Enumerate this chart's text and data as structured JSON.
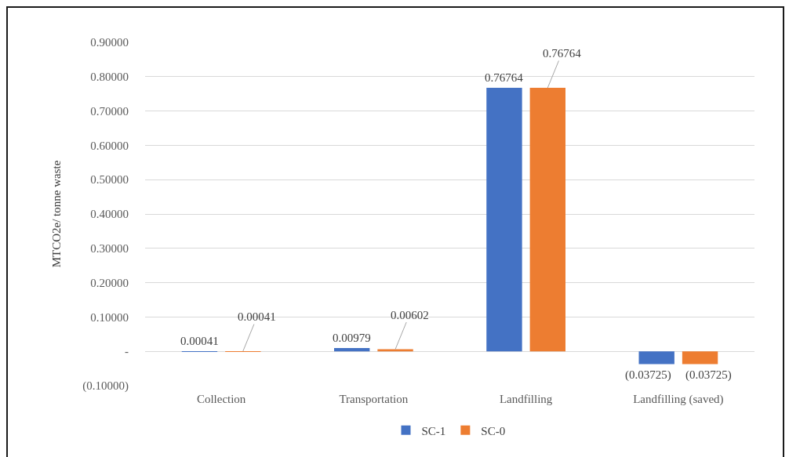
{
  "chart_data": {
    "type": "bar",
    "ylabel": "MTCO2e/ tonne waste",
    "categories": [
      "Collection",
      "Transportation",
      "Landfilling",
      "Landfilling (saved)"
    ],
    "series": [
      {
        "name": "SC-1",
        "color": "#4472c4",
        "values": [
          0.00041,
          0.00979,
          0.76764,
          -0.03725
        ],
        "value_labels": [
          "0.00041",
          "0.00979",
          "0.76764",
          "(0.03725)"
        ]
      },
      {
        "name": "SC-0",
        "color": "#ed7d31",
        "values": [
          0.00041,
          0.00602,
          0.76764,
          -0.03725
        ],
        "value_labels": [
          "0.00041",
          "0.00602",
          "0.76764",
          "(0.03725)"
        ]
      }
    ],
    "ylim": [
      -0.1,
      0.9
    ],
    "yticks": [
      {
        "value": -0.1,
        "label": "(0.10000)"
      },
      {
        "value": 0,
        "label": "-"
      },
      {
        "value": 0.1,
        "label": "0.10000"
      },
      {
        "value": 0.2,
        "label": "0.20000"
      },
      {
        "value": 0.3,
        "label": "0.30000"
      },
      {
        "value": 0.4,
        "label": "0.40000"
      },
      {
        "value": 0.5,
        "label": "0.50000"
      },
      {
        "value": 0.6,
        "label": "0.60000"
      },
      {
        "value": 0.7,
        "label": "0.70000"
      },
      {
        "value": 0.8,
        "label": "0.80000"
      },
      {
        "value": 0.9,
        "label": "0.90000"
      }
    ],
    "grid": "y",
    "legend": "bottom"
  }
}
